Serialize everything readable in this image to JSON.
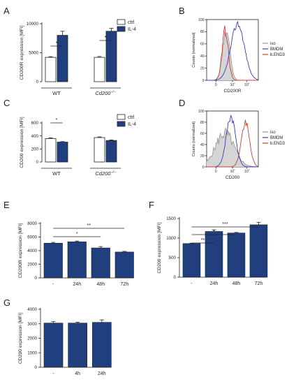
{
  "colors": {
    "ctrl": "#ffffff",
    "il4": "#1f3f7f",
    "bar": "#1f3f7f",
    "axis": "#222222",
    "iso": "#9a9a9a",
    "bmdm": "#3a3ab8",
    "bend3": "#cc3b3b"
  },
  "chart_data": [
    {
      "panel": "A",
      "type": "bar",
      "ylabel": "CD200R expression [MFI]",
      "ylim": [
        0,
        10000
      ],
      "yticks": [
        "0",
        "5000",
        "10000"
      ],
      "groups": [
        "WT",
        "Cd200⁻/⁻"
      ],
      "legend": [
        "ctrl",
        "IL-4"
      ],
      "series": [
        {
          "name": "ctrl",
          "values": [
            4200,
            4200
          ],
          "errors": [
            120,
            150
          ]
        },
        {
          "name": "IL-4",
          "values": [
            8000,
            8700
          ],
          "errors": [
            700,
            500
          ]
        }
      ],
      "significance": [
        "*",
        "*"
      ]
    },
    {
      "panel": "B",
      "type": "histogram",
      "xlabel": "CD200R",
      "ylabel": "Counts (normalized)",
      "yticks": [
        "0",
        "20",
        "40",
        "60",
        "80",
        "100"
      ],
      "xticks": [
        "0",
        "10³",
        "10⁴"
      ],
      "legend": [
        "iso",
        "BMDM",
        "b.END3"
      ]
    },
    {
      "panel": "C",
      "type": "bar",
      "ylabel": "CD200 expression [MFI]",
      "ylim": [
        0,
        600
      ],
      "yticks": [
        "0",
        "200",
        "400",
        "600"
      ],
      "groups": [
        "WT",
        "Cd200⁻/⁻"
      ],
      "legend": [
        "ctrl",
        "IL-4"
      ],
      "series": [
        {
          "name": "ctrl",
          "values": [
            360,
            375
          ],
          "errors": [
            10,
            10
          ]
        },
        {
          "name": "IL-4",
          "values": [
            305,
            330
          ],
          "errors": [
            8,
            8
          ]
        }
      ],
      "significance": [
        "*"
      ]
    },
    {
      "panel": "D",
      "type": "histogram",
      "xlabel": "CD200",
      "ylabel": "Counts (normalized)",
      "yticks": [
        "0",
        "20",
        "40",
        "60",
        "80",
        "100"
      ],
      "xticks": [
        "0",
        "10³",
        "10⁴"
      ],
      "legend": [
        "iso",
        "BMDM",
        "b.END3"
      ]
    },
    {
      "panel": "E",
      "type": "bar",
      "ylabel": "CD200R expression [MFI]",
      "ylim": [
        0,
        8000
      ],
      "yticks": [
        "0",
        "2000",
        "4000",
        "6000",
        "8000"
      ],
      "categories": [
        "-",
        "24h",
        "48h",
        "72h"
      ],
      "values": [
        5100,
        5300,
        4400,
        3800
      ],
      "errors": [
        120,
        120,
        200,
        100
      ],
      "significance": [
        "**",
        "*"
      ]
    },
    {
      "panel": "F",
      "type": "bar",
      "ylabel": "CD200 expression [MFI]",
      "ylim": [
        0,
        1500
      ],
      "yticks": [
        "0",
        "500",
        "1000",
        "1500"
      ],
      "categories": [
        "-",
        "24h",
        "48h",
        "72h"
      ],
      "values": [
        860,
        1170,
        1130,
        1340
      ],
      "errors": [
        10,
        40,
        15,
        60
      ],
      "significance": [
        "***",
        "*",
        "**"
      ]
    },
    {
      "panel": "G",
      "type": "bar",
      "ylabel": "CD200 expression [MFI]",
      "ylim": [
        0,
        4000
      ],
      "yticks": [
        "0",
        "1000",
        "2000",
        "3000",
        "4000"
      ],
      "categories": [
        "-",
        "4h",
        "24h"
      ],
      "values": [
        3050,
        3050,
        3100
      ],
      "errors": [
        100,
        60,
        170
      ]
    }
  ]
}
